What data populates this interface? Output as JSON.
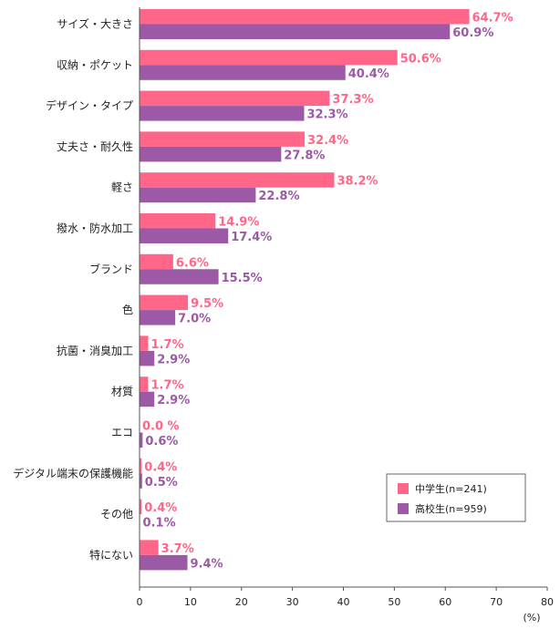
{
  "chart_data": {
    "type": "bar",
    "orientation": "horizontal",
    "categories": [
      "サイズ・大きさ",
      "収納・ポケット",
      "デザイン・タイプ",
      "丈夫さ・耐久性",
      "軽さ",
      "撥水・防水加工",
      "ブランド",
      "色",
      "抗菌・消臭加工",
      "材質",
      "エコ",
      "デジタル端末の保護機能",
      "その他",
      "特にない"
    ],
    "series": [
      {
        "name": "中学生(n=241)",
        "color": "#ff6688",
        "values": [
          64.7,
          50.6,
          37.3,
          32.4,
          38.2,
          14.9,
          6.6,
          9.5,
          1.7,
          1.7,
          0.0,
          0.4,
          0.4,
          3.7
        ],
        "labels": [
          "64.7%",
          "50.6%",
          "37.3%",
          "32.4%",
          "38.2%",
          "14.9%",
          "6.6%",
          "9.5%",
          "1.7%",
          "1.7%",
          "0.0 %",
          "0.4%",
          "0.4%",
          "3.7%"
        ]
      },
      {
        "name": "高校生(n=959)",
        "color": "#9b59a6",
        "values": [
          60.9,
          40.4,
          32.3,
          27.8,
          22.8,
          17.4,
          15.5,
          7.0,
          2.9,
          2.9,
          0.6,
          0.5,
          0.1,
          9.4
        ],
        "labels": [
          "60.9%",
          "40.4%",
          "32.3%",
          "27.8%",
          "22.8%",
          "17.4%",
          "15.5%",
          "7.0%",
          "2.9%",
          "2.9%",
          "0.6%",
          "0.5%",
          "0.1%",
          "9.4%"
        ]
      }
    ],
    "xlim": [
      0,
      80
    ],
    "xticks": [
      "0",
      "10",
      "20",
      "30",
      "40",
      "50",
      "60",
      "70",
      "80"
    ],
    "unit_label": "(%)",
    "legend_position": "bottom-right",
    "grid": false
  }
}
